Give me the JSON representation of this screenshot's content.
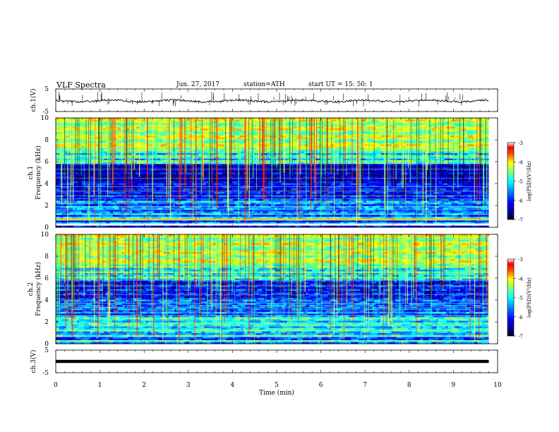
{
  "header": {
    "title": "VLF  Spectra",
    "date": "Jun. 27, 2017",
    "station": "station=ATH",
    "start_ut": "start  UT  =    15: 50: 1"
  },
  "chart_data": [
    {
      "type": "line",
      "ylabel": "ch.1(V)",
      "ylim": [
        -5,
        5
      ],
      "yticks": [
        "5",
        "-5"
      ],
      "baseline": 0,
      "series": [
        {
          "values": "noisy waveform near 0 V with impulsive spikes"
        }
      ]
    },
    {
      "type": "heatmap",
      "ylabel": "ch.1\nFrequency (kHz)",
      "ylim": [
        0,
        10
      ],
      "yticks": [
        "0",
        "2",
        "4",
        "6",
        "8",
        "10"
      ],
      "colorbar": {
        "label": "log(PSD)(V²/Hz)",
        "range": [
          -7,
          -3
        ],
        "ticks": [
          "-3",
          "-4",
          "-5",
          "-6",
          "-7"
        ]
      }
    },
    {
      "type": "heatmap",
      "ylabel": "ch.2\nFrequency (kHz)",
      "ylim": [
        0,
        10
      ],
      "yticks": [
        "0",
        "2",
        "4",
        "6",
        "8",
        "10"
      ],
      "colorbar": {
        "label": "log(PSD)(V²/Hz)",
        "range": [
          -7,
          -3
        ],
        "ticks": [
          "-3",
          "-4",
          "-5",
          "-6",
          "-7"
        ]
      }
    },
    {
      "type": "line",
      "ylabel": "ch.3(V)",
      "ylim": [
        -5,
        5
      ],
      "yticks": [
        "5",
        "-5"
      ],
      "baseline": 0,
      "series": [
        {
          "values": "flat thick line near 0 V"
        }
      ]
    }
  ],
  "xaxis": {
    "label": "Time  (min)",
    "range": [
      0,
      10
    ],
    "ticks": [
      "0",
      "1",
      "2",
      "3",
      "4",
      "5",
      "6",
      "7",
      "8",
      "9",
      "10"
    ],
    "data_end": 9.8
  },
  "colors": {
    "frame": "#000000",
    "background": "#ffffff"
  }
}
